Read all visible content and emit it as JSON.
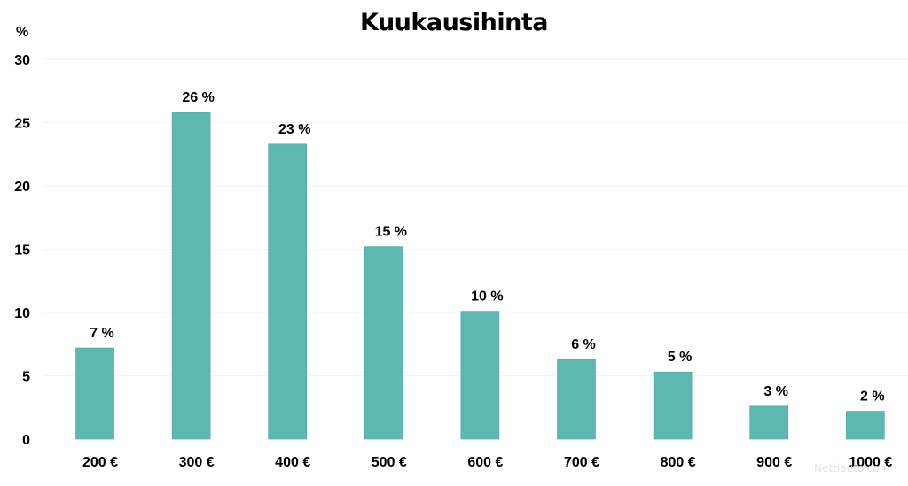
{
  "chart_data": {
    "type": "bar",
    "title": "Kuukausihinta",
    "y_unit_label": "%",
    "categories": [
      "200 €",
      "300 €",
      "400 €",
      "500 €",
      "600 €",
      "700 €",
      "800 €",
      "900 €",
      "1000 €"
    ],
    "values": [
      7.2,
      25.8,
      23.3,
      15.2,
      10.1,
      6.3,
      5.3,
      2.6,
      2.2
    ],
    "data_labels": [
      "7 %",
      "26 %",
      "23 %",
      "15 %",
      "10 %",
      "6 %",
      "5 %",
      "3 %",
      "2 %"
    ],
    "ylim": [
      0,
      30
    ],
    "yticks": [
      0,
      5,
      10,
      15,
      20,
      25,
      30
    ],
    "bar_color": "#5cb8b1",
    "grid": true,
    "legend": "none"
  },
  "watermark": "Nettiauto.com"
}
